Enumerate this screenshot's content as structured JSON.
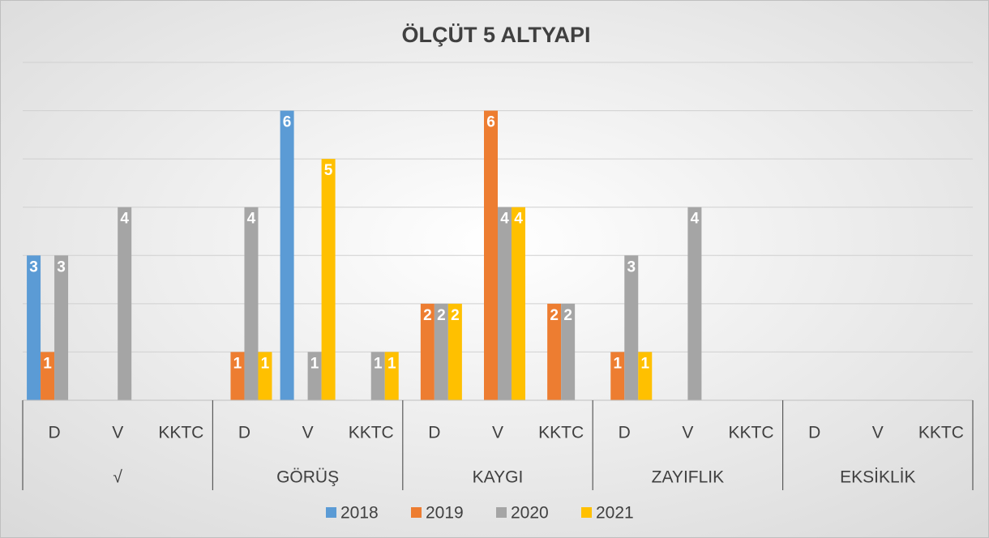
{
  "chart_data": {
    "type": "bar",
    "title": "ÖLÇÜT 5 ALTYAPI",
    "categories": [
      "D",
      "V",
      "KKTC",
      "D",
      "V",
      "KKTC",
      "D",
      "V",
      "KKTC",
      "D",
      "V",
      "KKTC",
      "D",
      "V",
      "KKTC"
    ],
    "group_labels": [
      "√",
      "GÖRÜŞ",
      "KAYGI",
      "ZAYIFLIK",
      "EKSİKLİK"
    ],
    "series": [
      {
        "name": "2018",
        "color": "#5b9bd5",
        "values": [
          3,
          null,
          null,
          null,
          6,
          null,
          null,
          null,
          null,
          null,
          null,
          null,
          null,
          null,
          null
        ]
      },
      {
        "name": "2019",
        "color": "#ed7d31",
        "values": [
          1,
          null,
          null,
          1,
          null,
          null,
          2,
          6,
          2,
          1,
          null,
          null,
          null,
          null,
          null
        ]
      },
      {
        "name": "2020",
        "color": "#a5a5a5",
        "values": [
          3,
          4,
          null,
          4,
          1,
          1,
          2,
          4,
          2,
          3,
          4,
          null,
          null,
          null,
          null
        ]
      },
      {
        "name": "2021",
        "color": "#ffc000",
        "values": [
          null,
          null,
          null,
          1,
          5,
          1,
          2,
          4,
          null,
          1,
          null,
          null,
          null,
          null,
          null
        ]
      }
    ],
    "ylim": [
      0,
      7
    ],
    "yticks": [
      0,
      1,
      2,
      3,
      4,
      5,
      6,
      7
    ],
    "grid": true,
    "legend": "bottom"
  }
}
